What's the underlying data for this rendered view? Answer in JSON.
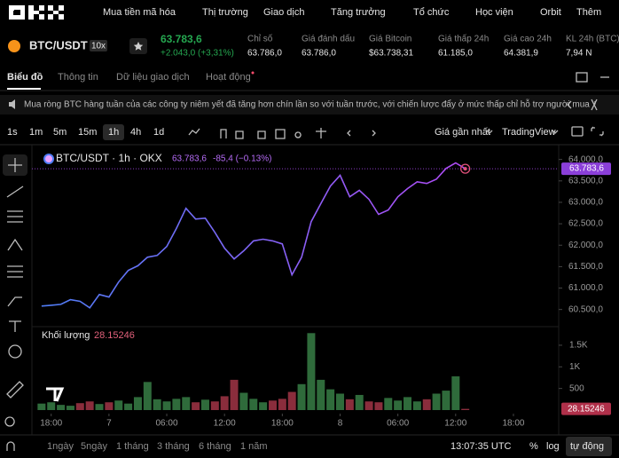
{
  "nav": {
    "items": [
      "Mua tiền mã hóa",
      "Thị trường",
      "Giao dịch",
      "Tăng trưởng",
      "Tổ chức",
      "Học viện",
      "Orbit",
      "Thêm"
    ]
  },
  "ticker": {
    "pair": "BTC/USDT",
    "leverage": "10x",
    "price": "63.783,6",
    "change": "+2.043,0 (+3,31%)",
    "stats": [
      {
        "label": "Chỉ số",
        "value": "63.786,0"
      },
      {
        "label": "Giá đánh dấu",
        "value": "63.786,0"
      },
      {
        "label": "Giá Bitcoin",
        "value": "$63.738,31"
      },
      {
        "label": "Giá thấp 24h",
        "value": "61.185,0"
      },
      {
        "label": "Giá cao 24h",
        "value": "64.381,9"
      },
      {
        "label": "KL 24h (BTC)",
        "value": "7,94 N"
      }
    ]
  },
  "tabs": [
    "Biểu đồ",
    "Thông tin",
    "Dữ liệu giao dịch",
    "Hoạt động"
  ],
  "banner": "Mua ròng BTC hàng tuần của các công ty niêm yết đã tăng hơn chín lần so với tuần trước, với chiến lược đẩy ở mức thấp chỉ hỗ trợ người mua",
  "toolbar": {
    "intervals": [
      "1s",
      "1m",
      "5m",
      "15m",
      "1h",
      "4h",
      "1d"
    ],
    "price_source": "Giá gần nhất",
    "provider": "TradingView"
  },
  "chart_data": {
    "type": "line",
    "legend": {
      "symbol": "BTC/USDT · 1h · OKX",
      "price": "63.783,6",
      "change": "-85,4 (−0.13%)"
    },
    "price_tag": "63.783,6",
    "x": [
      -1,
      0,
      1,
      2,
      3,
      4,
      5,
      6,
      7,
      8,
      9,
      10,
      11,
      12,
      13,
      14,
      15,
      16,
      17,
      18,
      19,
      20,
      21,
      22,
      23,
      24,
      25,
      26,
      27,
      28,
      29,
      30,
      31,
      32,
      33,
      34,
      35,
      36,
      37,
      38,
      39,
      40,
      41,
      42,
      43
    ],
    "xlim": [
      -2,
      52.7
    ],
    "xticks": [
      {
        "value": 0,
        "label": "18:00"
      },
      {
        "value": 6,
        "label": "7"
      },
      {
        "value": 12,
        "label": "06:00"
      },
      {
        "value": 18,
        "label": "12:00"
      },
      {
        "value": 24,
        "label": "18:00"
      },
      {
        "value": 30,
        "label": "8"
      },
      {
        "value": 36,
        "label": "06:00"
      },
      {
        "value": 42,
        "label": "12:00"
      },
      {
        "value": 48,
        "label": "18:00"
      }
    ],
    "series": [
      {
        "colors": [
          "#4f7df5",
          "#b04bf5"
        ],
        "values": [
          60580,
          60600,
          60620,
          60730,
          60690,
          60540,
          60850,
          60790,
          61140,
          61410,
          61520,
          61720,
          61760,
          61970,
          62390,
          62860,
          62610,
          62630,
          62300,
          61930,
          61680,
          61870,
          62100,
          62140,
          62100,
          62030,
          61310,
          61720,
          62550,
          62970,
          63380,
          63630,
          63130,
          63280,
          63070,
          62720,
          62820,
          63130,
          63320,
          63480,
          63440,
          63540,
          63790,
          63920,
          63783.6
        ]
      }
    ],
    "ylim": [
      60100,
      64200
    ],
    "yticks": [
      {
        "value": 60500,
        "label": "60.500,0"
      },
      {
        "value": 61000,
        "label": "61.000,0"
      },
      {
        "value": 61500,
        "label": "61.500,0"
      },
      {
        "value": 62000,
        "label": "62.000,0"
      },
      {
        "value": 62500,
        "label": "62.500,0"
      },
      {
        "value": 63000,
        "label": "63.000,0"
      },
      {
        "value": 63500,
        "label": "63.500,0"
      },
      {
        "value": 64000,
        "label": "64.000,0"
      }
    ],
    "grid": false,
    "volume": {
      "name": "Khối lượng",
      "up_color": "#2f6b3b",
      "down_color": "#8a2d3c",
      "ylim": [
        0,
        1930
      ],
      "yticks": [
        500,
        {
          "value": 1000,
          "label": "1K"
        },
        {
          "value": 1500,
          "label": "1.5K"
        }
      ],
      "values": [
        150,
        180,
        120,
        100,
        160,
        200,
        140,
        180,
        220,
        150,
        300,
        650,
        250,
        200,
        260,
        300,
        180,
        240,
        200,
        320,
        700,
        400,
        260,
        180,
        220,
        260,
        420,
        600,
        1780,
        700,
        480,
        380,
        250,
        350,
        200,
        180,
        280,
        220,
        300,
        200,
        250,
        380,
        450,
        780,
        28.15246
      ]
    }
  },
  "footer": {
    "ranges": [
      "1ngày",
      "5ngày",
      "1 tháng",
      "3 tháng",
      "6 tháng",
      "1 năm"
    ],
    "clock": "13:07:35 UTC",
    "percent": "%",
    "log": "log",
    "auto": "tự động"
  }
}
